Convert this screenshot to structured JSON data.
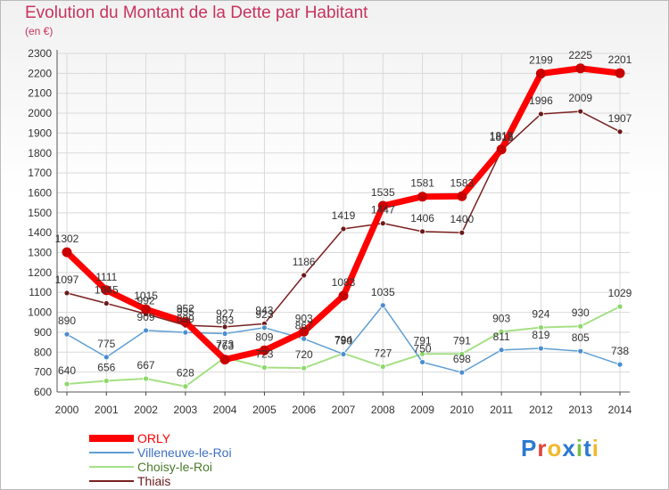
{
  "header": {
    "title": "Evolution du Montant de la Dette par Habitant",
    "unit": "(en €)"
  },
  "logo": {
    "letters": [
      "P",
      "r",
      "o",
      "x",
      "i",
      "t",
      "i"
    ],
    "colors": [
      "#2b78d1",
      "#e0433c",
      "#f1b82d",
      "#2b78d1",
      "#7bc043",
      "#2b78d1",
      "#f1b82d"
    ]
  },
  "chart_data": {
    "type": "line",
    "title": "Evolution du Montant de la Dette par Habitant",
    "subtitle": "(en €)",
    "xlabel": "",
    "ylabel": "",
    "x": [
      "2000",
      "2001",
      "2002",
      "2003",
      "2004",
      "2005",
      "2006",
      "2007",
      "2008",
      "2009",
      "2010",
      "2011",
      "2012",
      "2013",
      "2014"
    ],
    "ylim": [
      600,
      2300
    ],
    "yticks": [
      600,
      700,
      800,
      900,
      1000,
      1100,
      1200,
      1300,
      1400,
      1500,
      1600,
      1700,
      1800,
      1900,
      2000,
      2100,
      2200,
      2300
    ],
    "grid": true,
    "legend_position": "bottom-left",
    "series": [
      {
        "name": "ORLY",
        "color": "#ff0000",
        "marker": "#c80000",
        "values": [
          1302,
          1111,
          1015,
          952,
          763,
          809,
          903,
          1083,
          1535,
          1581,
          1583,
          1818,
          2199,
          2225,
          2201
        ],
        "labels": [
          "1302",
          "1111",
          "1015",
          "952",
          "763",
          "809",
          "903",
          "1083",
          "1535",
          "1581",
          "1583",
          "1818",
          "2199",
          "2225",
          "2201"
        ]
      },
      {
        "name": "Villeneuve-le-Roi",
        "color": "#5f9fd3",
        "marker": "#4b8ed0",
        "values": [
          890,
          775,
          909,
          899,
          893,
          923,
          867,
          790,
          1035,
          750,
          698,
          811,
          819,
          805,
          738
        ],
        "labels": [
          "890",
          "775",
          "909",
          "899",
          "893",
          "923",
          "867",
          "790",
          "1035",
          "750",
          "698",
          "811",
          "819",
          "805",
          "738"
        ]
      },
      {
        "name": "Choisy-le-Roi",
        "color": "#a6e085",
        "marker": "#8cd86a",
        "values": [
          640,
          656,
          667,
          628,
          773,
          723,
          720,
          794,
          727,
          791,
          791,
          903,
          924,
          930,
          1029
        ],
        "labels": [
          "640",
          "656",
          "667",
          "628",
          "773",
          "723",
          "720",
          "794",
          "727",
          "791",
          "791",
          "903",
          "924",
          "930",
          "1029"
        ]
      },
      {
        "name": "Thiais",
        "color": "#7a2020",
        "marker": "#6b1a1a",
        "values": [
          1097,
          1045,
          992,
          935,
          927,
          943,
          1186,
          1419,
          1447,
          1406,
          1400,
          1813,
          1996,
          2009,
          1907
        ],
        "labels": [
          "1097",
          "1045",
          "992",
          "935",
          "927",
          "943",
          "1186",
          "1419",
          "1447",
          "1406",
          "1400",
          "1813",
          "1996",
          "2009",
          "1907"
        ]
      }
    ]
  }
}
